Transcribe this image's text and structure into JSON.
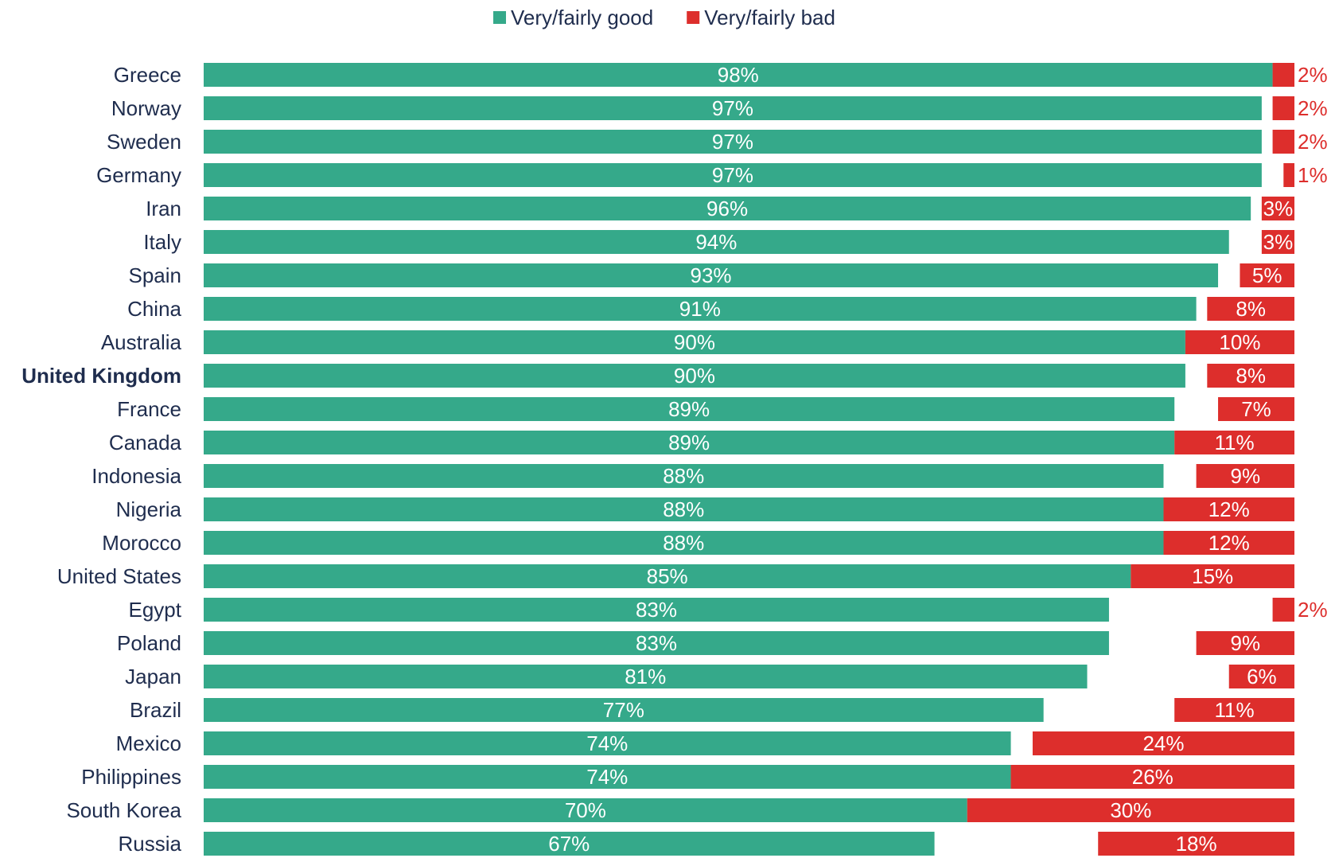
{
  "chart_data": {
    "type": "bar",
    "orientation": "horizontal",
    "categories": [
      "Greece",
      "Norway",
      "Sweden",
      "Germany",
      "Iran",
      "Italy",
      "Spain",
      "China",
      "Australia",
      "United Kingdom",
      "France",
      "Canada",
      "Indonesia",
      "Nigeria",
      "Morocco",
      "United States",
      "Egypt",
      "Poland",
      "Japan",
      "Brazil",
      "Mexico",
      "Philippines",
      "South Korea",
      "Russia"
    ],
    "highlight": [
      "United Kingdom"
    ],
    "xlim": [
      0,
      100
    ],
    "series": [
      {
        "name": "Very/fairly good",
        "color": "#35a98a",
        "values": [
          98,
          97,
          97,
          97,
          96,
          94,
          93,
          91,
          90,
          90,
          89,
          89,
          88,
          88,
          88,
          85,
          83,
          83,
          81,
          77,
          74,
          74,
          70,
          67
        ],
        "value_labels": [
          "98%",
          "97%",
          "97%",
          "97%",
          "96%",
          "94%",
          "93%",
          "91%",
          "90%",
          "90%",
          "89%",
          "89%",
          "88%",
          "88%",
          "88%",
          "85%",
          "83%",
          "83%",
          "81%",
          "77%",
          "74%",
          "74%",
          "70%",
          "67%"
        ]
      },
      {
        "name": "Very/fairly bad",
        "color": "#dd2e2c",
        "values": [
          2,
          2,
          2,
          1,
          3,
          3,
          5,
          8,
          10,
          8,
          7,
          11,
          9,
          12,
          12,
          15,
          2,
          9,
          6,
          11,
          24,
          26,
          30,
          18
        ],
        "value_labels": [
          "2%",
          "2%",
          "2%",
          "1%",
          "3%",
          "3%",
          "5%",
          "8%",
          "10%",
          "8%",
          "7%",
          "11%",
          "9%",
          "12%",
          "12%",
          "15%",
          "2%",
          "9%",
          "6%",
          "11%",
          "24%",
          "26%",
          "30%",
          "18%"
        ]
      }
    ],
    "legend": "top"
  }
}
